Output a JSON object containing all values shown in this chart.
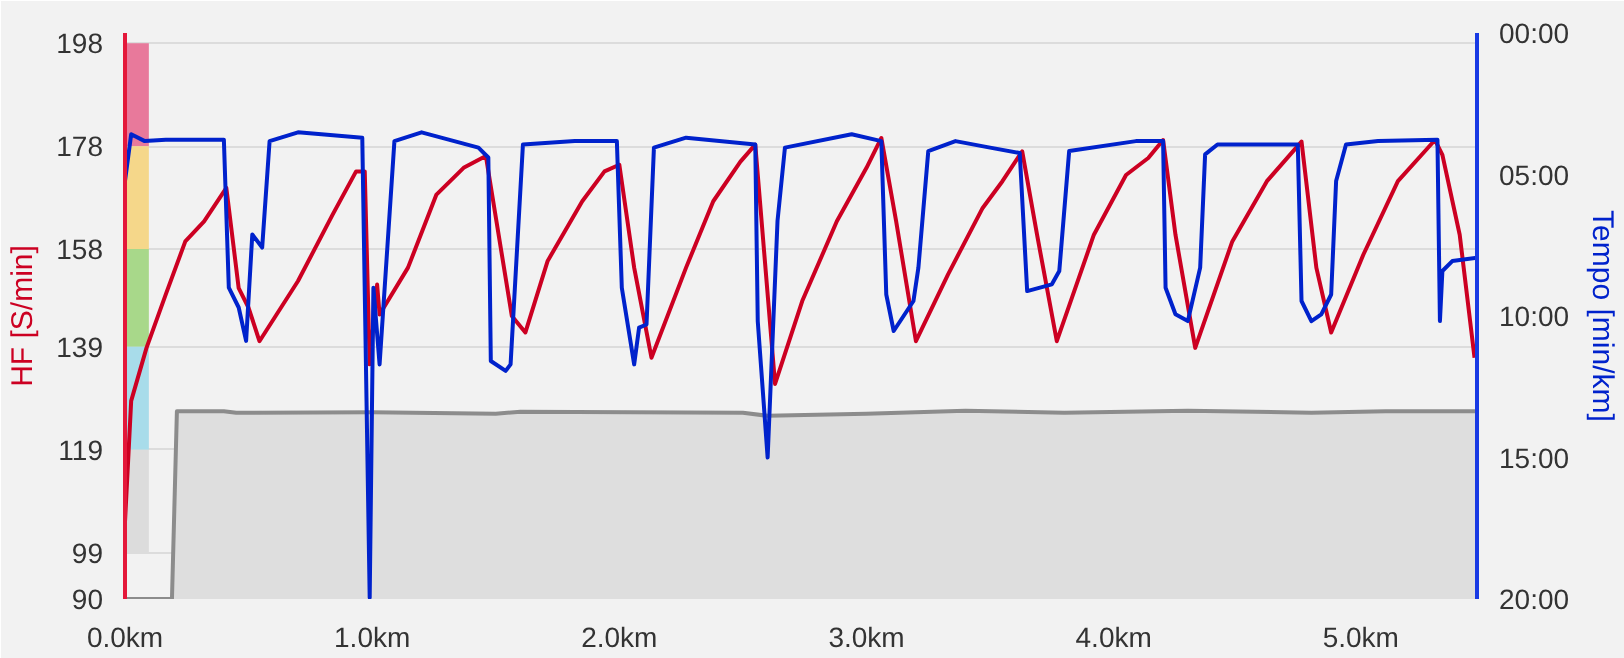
{
  "chart_data": {
    "type": "line",
    "xlabel": null,
    "ylabel": "HF [S/min]",
    "y2label": "Tempo [min/km]",
    "xlim": [
      0,
      5.47
    ],
    "xticks": [
      {
        "value": 0,
        "label": "0.0km"
      },
      {
        "value": 1,
        "label": "1.0km"
      },
      {
        "value": 2,
        "label": "2.0km"
      },
      {
        "value": 3,
        "label": "3.0km"
      },
      {
        "value": 4,
        "label": "4.0km"
      },
      {
        "value": 5,
        "label": "5.0km"
      }
    ],
    "ylim": [
      90,
      200
    ],
    "yticks": [
      90,
      99,
      119,
      139,
      158,
      178,
      198
    ],
    "y2lim": [
      20,
      0
    ],
    "y2ticks": [
      {
        "value": 0,
        "label": "00:00"
      },
      {
        "value": 5,
        "label": "05:00"
      },
      {
        "value": 10,
        "label": "10:00"
      },
      {
        "value": 15,
        "label": "15:00"
      },
      {
        "value": 20,
        "label": "20:00"
      }
    ],
    "grid": "y",
    "series": [
      {
        "type": "bar",
        "x": [
          0.05
        ],
        "base": [
          178
        ],
        "values": [
          20
        ],
        "color": "#e8799b"
      },
      {
        "type": "bar",
        "x": [
          0.05
        ],
        "base": [
          158
        ],
        "values": [
          20
        ],
        "color": "#f5d78a"
      },
      {
        "type": "bar",
        "x": [
          0.05
        ],
        "base": [
          139
        ],
        "values": [
          19
        ],
        "color": "#a8d88a"
      },
      {
        "type": "bar",
        "x": [
          0.05
        ],
        "base": [
          119
        ],
        "values": [
          20
        ],
        "color": "#a8dcea"
      },
      {
        "type": "bar",
        "x": [
          0.05
        ],
        "base": [
          99
        ],
        "values": [
          20
        ],
        "color": "#dcdcdc"
      },
      {
        "type": "area",
        "color": "#8c8c8c",
        "x": [
          0,
          0.19,
          0.21,
          0.4,
          0.45,
          1.0,
          1.5,
          1.6,
          2.5,
          2.6,
          3.0,
          3.4,
          3.8,
          4.3,
          4.8,
          5.1,
          5.47
        ],
        "values": [
          90,
          90,
          126.5,
          126.5,
          126.2,
          126.3,
          126.0,
          126.4,
          126.2,
          125.6,
          126.0,
          126.6,
          126.2,
          126.6,
          126.2,
          126.5,
          126.5
        ]
      },
      {
        "color": "#cc0022",
        "x": [
          0,
          0.025,
          0.087,
          0.165,
          0.244,
          0.32,
          0.41,
          0.46,
          0.5,
          0.544,
          0.7,
          0.84,
          0.935,
          0.97,
          0.99,
          1.02,
          1.03,
          1.145,
          1.26,
          1.37,
          1.46,
          1.565,
          1.62,
          1.71,
          1.85,
          1.94,
          2.0,
          2.06,
          2.13,
          2.27,
          2.38,
          2.49,
          2.55,
          2.63,
          2.74,
          2.88,
          3.0,
          3.06,
          3.12,
          3.2,
          3.33,
          3.47,
          3.55,
          3.63,
          3.69,
          3.77,
          3.92,
          4.05,
          4.14,
          4.2,
          4.25,
          4.33,
          4.48,
          4.62,
          4.76,
          4.82,
          4.88,
          5.01,
          5.15,
          5.3,
          5.33,
          5.4,
          5.46
        ],
        "values": [
          105,
          128.5,
          138.8,
          149.2,
          159.5,
          163.4,
          169.9,
          150.4,
          146.6,
          140.1,
          151.8,
          164.7,
          173.1,
          173.1,
          135.6,
          151.1,
          145.3,
          154.4,
          168.6,
          173.8,
          176.1,
          145,
          141.8,
          155.7,
          167.3,
          173.1,
          174.4,
          154.4,
          136.9,
          154.4,
          167.3,
          175.0,
          178.3,
          131.8,
          147.9,
          163.4,
          173.8,
          179.6,
          163.4,
          140.1,
          153.1,
          166.0,
          171.2,
          177.0,
          160.8,
          140.1,
          160.8,
          172.4,
          175.7,
          179.2,
          160.8,
          138.8,
          159.5,
          171.2,
          178.9,
          154.4,
          141.8,
          156.9,
          171.2,
          179.2,
          176.3,
          160.8,
          136.9
        ]
      },
      {
        "axis": "y2",
        "color": "#0022cc",
        "x": [
          0,
          0.025,
          0.08,
          0.165,
          0.4,
          0.42,
          0.46,
          0.49,
          0.515,
          0.555,
          0.585,
          0.7,
          0.96,
          0.99,
          1.005,
          1.03,
          1.09,
          1.2,
          1.43,
          1.47,
          1.48,
          1.54,
          1.56,
          1.61,
          1.82,
          1.99,
          2.01,
          2.06,
          2.08,
          2.11,
          2.14,
          2.27,
          2.55,
          2.56,
          2.6,
          2.64,
          2.67,
          2.94,
          3.06,
          3.08,
          3.11,
          3.19,
          3.21,
          3.25,
          3.36,
          3.5,
          3.62,
          3.65,
          3.75,
          3.78,
          3.82,
          4.09,
          4.2,
          4.21,
          4.25,
          4.3,
          4.35,
          4.37,
          4.42,
          4.745,
          4.76,
          4.8,
          4.84,
          4.88,
          4.9,
          4.94,
          5.07,
          5.31,
          5.32,
          5.33,
          5.37,
          5.47
        ],
        "values": [
          5.23,
          3.58,
          3.82,
          3.77,
          3.77,
          9.0,
          9.7,
          10.88,
          7.12,
          7.58,
          3.82,
          3.51,
          3.7,
          19.95,
          9.0,
          11.71,
          3.82,
          3.51,
          4.05,
          4.4,
          11.59,
          11.94,
          11.71,
          3.94,
          3.82,
          3.82,
          9.0,
          11.71,
          10.41,
          10.3,
          4.05,
          3.7,
          3.94,
          10.18,
          15.0,
          6.64,
          4.05,
          3.58,
          3.82,
          9.24,
          10.53,
          9.47,
          8.29,
          4.17,
          3.82,
          4.05,
          4.24,
          9.12,
          8.88,
          8.41,
          4.17,
          3.82,
          3.82,
          9.0,
          9.94,
          10.18,
          8.29,
          4.29,
          3.94,
          3.94,
          9.47,
          10.18,
          9.94,
          9.24,
          5.23,
          3.94,
          3.82,
          3.77,
          10.18,
          8.41,
          8.06,
          7.94
        ]
      }
    ]
  }
}
